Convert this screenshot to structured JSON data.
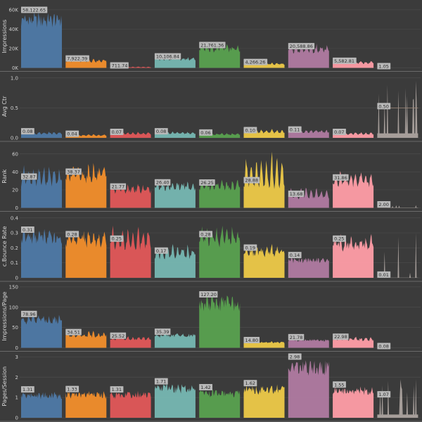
{
  "chart_data": {
    "type": "area",
    "chart_form": "small multiples; one row per metric, one colored spiky area block per group",
    "background": "#3b3b3b",
    "group_colors": [
      "#4e79a7",
      "#f28e2b",
      "#e15759",
      "#76b7b2",
      "#59a14f",
      "#edc948",
      "#b07aa1",
      "#ff9da7",
      "#bab0ac"
    ],
    "rows": [
      {
        "axis_title": "Impressions",
        "ylim": [
          0,
          65000
        ],
        "ticks": [
          {
            "value": 0,
            "label": "0K"
          },
          {
            "value": 20000,
            "label": "20K"
          },
          {
            "value": 40000,
            "label": "40K"
          },
          {
            "value": 60000,
            "label": "60K"
          }
        ],
        "groups": [
          {
            "label": "58,122.65",
            "value": 58122.65,
            "peak": 64000
          },
          {
            "label": "7,922.39",
            "value": 7922.39,
            "peak": 11000
          },
          {
            "label": "711.74",
            "value": 711.74,
            "peak": 1500
          },
          {
            "label": "10,106.84",
            "value": 10106.84,
            "peak": 13000
          },
          {
            "label": "21,761.36",
            "value": 21761.36,
            "peak": 28000
          },
          {
            "label": "4,266.26",
            "value": 4266.26,
            "peak": 6000
          },
          {
            "label": "20,588.86",
            "value": 20588.86,
            "peak": 28000
          },
          {
            "label": "5,582.81",
            "value": 5582.81,
            "peak": 8000
          },
          {
            "label": "1.05",
            "value": 1.05,
            "peak": 0
          }
        ]
      },
      {
        "axis_title": "Avg Ctr",
        "ylim": [
          0,
          1.05
        ],
        "ticks": [
          {
            "value": 0,
            "label": "0.0"
          },
          {
            "value": 0.5,
            "label": "0.5"
          },
          {
            "value": 1.0,
            "label": "1.0"
          }
        ],
        "groups": [
          {
            "label": "0.08",
            "value": 0.08,
            "peak": 0.12
          },
          {
            "label": "0.04",
            "value": 0.04,
            "peak": 0.07
          },
          {
            "label": "0.07",
            "value": 0.07,
            "peak": 0.11
          },
          {
            "label": "0.08",
            "value": 0.08,
            "peak": 0.12
          },
          {
            "label": "0.06",
            "value": 0.06,
            "peak": 0.09
          },
          {
            "label": "0.10",
            "value": 0.1,
            "peak": 0.16
          },
          {
            "label": "0.11",
            "value": 0.11,
            "peak": 0.16
          },
          {
            "label": "0.07",
            "value": 0.07,
            "peak": 0.11
          },
          {
            "label": "0.50",
            "value": 0.5,
            "peak": 0.95
          }
        ]
      },
      {
        "axis_title": "Rank",
        "ylim": [
          0,
          70
        ],
        "ticks": [
          {
            "value": 0,
            "label": "0"
          },
          {
            "value": 20,
            "label": "20"
          },
          {
            "value": 40,
            "label": "40"
          },
          {
            "value": 60,
            "label": "60"
          }
        ],
        "groups": [
          {
            "label": "32.87",
            "value": 32.87,
            "peak": 55
          },
          {
            "label": "38.37",
            "value": 38.37,
            "peak": 55
          },
          {
            "label": "21.77",
            "value": 21.77,
            "peak": 30
          },
          {
            "label": "26.40",
            "value": 26.4,
            "peak": 34
          },
          {
            "label": "26.25",
            "value": 26.25,
            "peak": 35
          },
          {
            "label": "28.88",
            "value": 28.88,
            "peak": 67
          },
          {
            "label": "13.68",
            "value": 13.68,
            "peak": 26
          },
          {
            "label": "31.86",
            "value": 31.86,
            "peak": 45
          },
          {
            "label": "2.00",
            "value": 2.0,
            "peak": 3
          }
        ]
      },
      {
        "axis_title": "c.Bounce Rate",
        "ylim": [
          0,
          0.42
        ],
        "ticks": [
          {
            "value": 0,
            "label": "0"
          },
          {
            "value": 0.1,
            "label": "0.1"
          },
          {
            "value": 0.2,
            "label": "0.2"
          },
          {
            "value": 0.3,
            "label": "0.3"
          },
          {
            "value": 0.4,
            "label": "0.4"
          }
        ],
        "groups": [
          {
            "label": "0.31",
            "value": 0.31,
            "peak": 0.37
          },
          {
            "label": "0.28",
            "value": 0.28,
            "peak": 0.37
          },
          {
            "label": "0.25",
            "value": 0.25,
            "peak": 0.39
          },
          {
            "label": "0.17",
            "value": 0.17,
            "peak": 0.26
          },
          {
            "label": "0.28",
            "value": 0.28,
            "peak": 0.4
          },
          {
            "label": "0.19",
            "value": 0.19,
            "peak": 0.25
          },
          {
            "label": "0.14",
            "value": 0.14,
            "peak": 0.15
          },
          {
            "label": "0.25",
            "value": 0.25,
            "peak": 0.32
          },
          {
            "label": "0.01",
            "value": 0.01,
            "peak": 0.3
          }
        ]
      },
      {
        "axis_title": "Impressions/Page",
        "ylim": [
          0,
          155
        ],
        "ticks": [
          {
            "value": 0,
            "label": "0"
          },
          {
            "value": 50,
            "label": "50"
          },
          {
            "value": 100,
            "label": "100"
          },
          {
            "value": 150,
            "label": "150"
          }
        ],
        "groups": [
          {
            "label": "78.96",
            "value": 78.96,
            "peak": 95
          },
          {
            "label": "34.51",
            "value": 34.51,
            "peak": 45
          },
          {
            "label": "25.52",
            "value": 25.52,
            "peak": 32
          },
          {
            "label": "35.39",
            "value": 35.39,
            "peak": 40
          },
          {
            "label": "127.20",
            "value": 127.2,
            "peak": 145
          },
          {
            "label": "14.80",
            "value": 14.8,
            "peak": 18
          },
          {
            "label": "21.78",
            "value": 21.78,
            "peak": 24
          },
          {
            "label": "22.98",
            "value": 22.98,
            "peak": 30
          },
          {
            "label": "0.08",
            "value": 0.08,
            "peak": 0
          }
        ]
      },
      {
        "axis_title": "Pages/Session",
        "ylim": [
          0,
          3.1
        ],
        "ticks": [
          {
            "value": 0,
            "label": "0"
          },
          {
            "value": 1,
            "label": "1"
          },
          {
            "value": 2,
            "label": "2"
          },
          {
            "value": 3,
            "label": "3"
          }
        ],
        "groups": [
          {
            "label": "1.31",
            "value": 1.31,
            "peak": 1.4
          },
          {
            "label": "1.33",
            "value": 1.33,
            "peak": 1.45
          },
          {
            "label": "1.31",
            "value": 1.31,
            "peak": 1.45
          },
          {
            "label": "1.71",
            "value": 1.71,
            "peak": 1.85
          },
          {
            "label": "1.42",
            "value": 1.42,
            "peak": 1.5
          },
          {
            "label": "1.62",
            "value": 1.62,
            "peak": 1.75
          },
          {
            "label": "2.98",
            "value": 2.98,
            "peak": 3.05
          },
          {
            "label": "1.55",
            "value": 1.55,
            "peak": 1.7
          },
          {
            "label": "1.07",
            "value": 1.07,
            "peak": 1.9
          }
        ]
      }
    ]
  }
}
